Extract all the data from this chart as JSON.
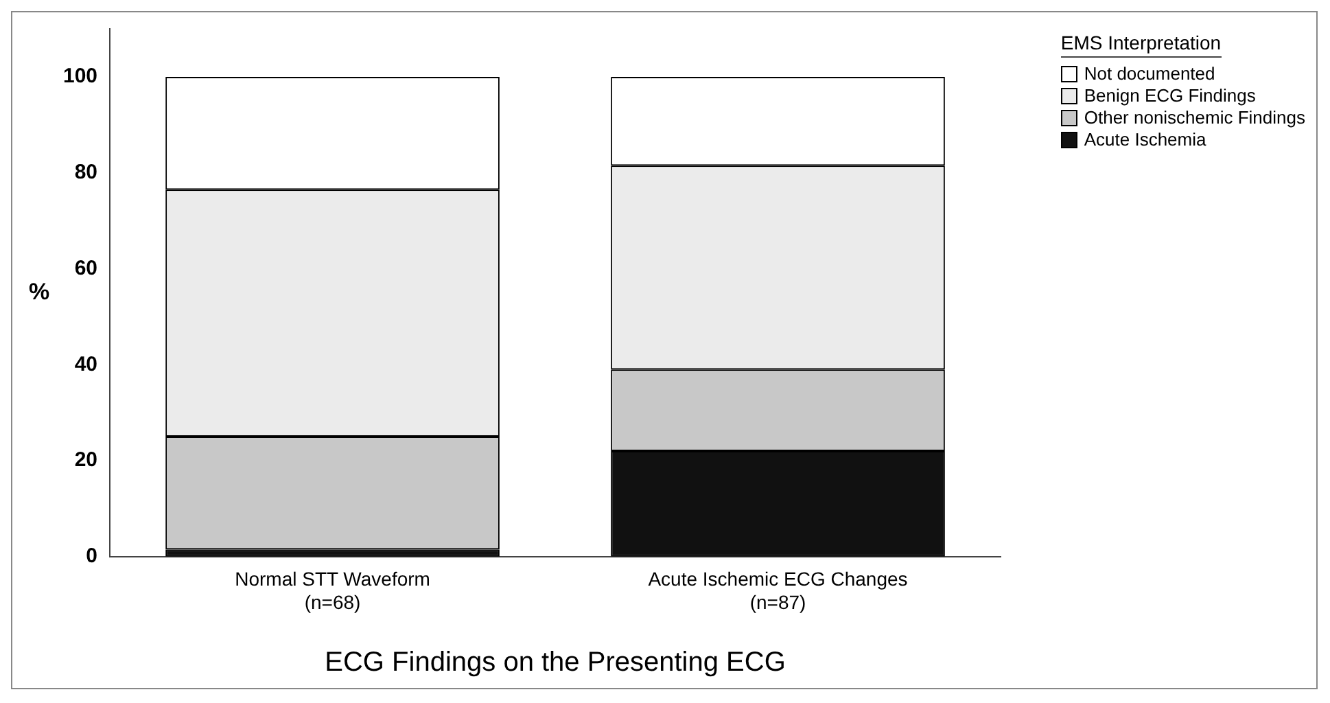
{
  "chart_data": {
    "type": "bar",
    "stacked": true,
    "xlabel": "ECG Findings on the Presenting ECG",
    "ylabel": "%",
    "legend_title": "EMS Interpretation",
    "categories": [
      "Normal STT Waveform\n(n=68)",
      "Acute Ischemic ECG Changes\n(n=87)"
    ],
    "series": [
      {
        "name": "Acute Ischemia",
        "color": "#111111",
        "values": [
          1.5,
          22
        ]
      },
      {
        "name": "Other nonischemic Findings",
        "color": "#c8c8c8",
        "values": [
          23.5,
          17
        ]
      },
      {
        "name": "Benign ECG Findings",
        "color": "#ebebeb",
        "values": [
          51.5,
          42.5
        ]
      },
      {
        "name": "Not documented",
        "color": "#ffffff",
        "values": [
          23.5,
          18.5
        ]
      }
    ],
    "ylim": [
      0,
      110
    ],
    "yticks": [
      0,
      20,
      40,
      60,
      80,
      100
    ],
    "grid": false,
    "legend": "top right"
  }
}
